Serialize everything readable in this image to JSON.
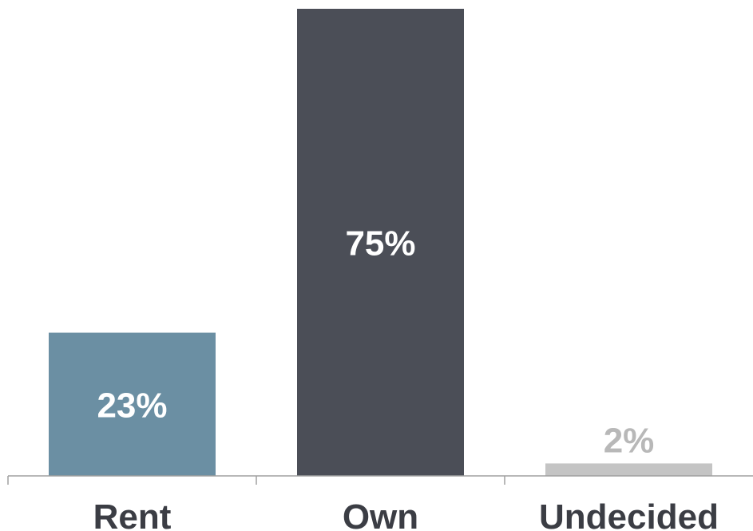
{
  "chart_data": {
    "type": "bar",
    "categories": [
      "Rent",
      "Own",
      "Undecided"
    ],
    "values": [
      23,
      75,
      2
    ],
    "value_labels": [
      "23%",
      "75%",
      "2%"
    ],
    "colors": [
      "#6b8fa3",
      "#4b4e57",
      "#c4c4c4"
    ],
    "value_label_colors": [
      "#ffffff",
      "#ffffff",
      "#b8b8b8"
    ],
    "axis_color": "#a0a0a0",
    "ylim": [
      0,
      75
    ],
    "grid": false,
    "legend": "none"
  }
}
